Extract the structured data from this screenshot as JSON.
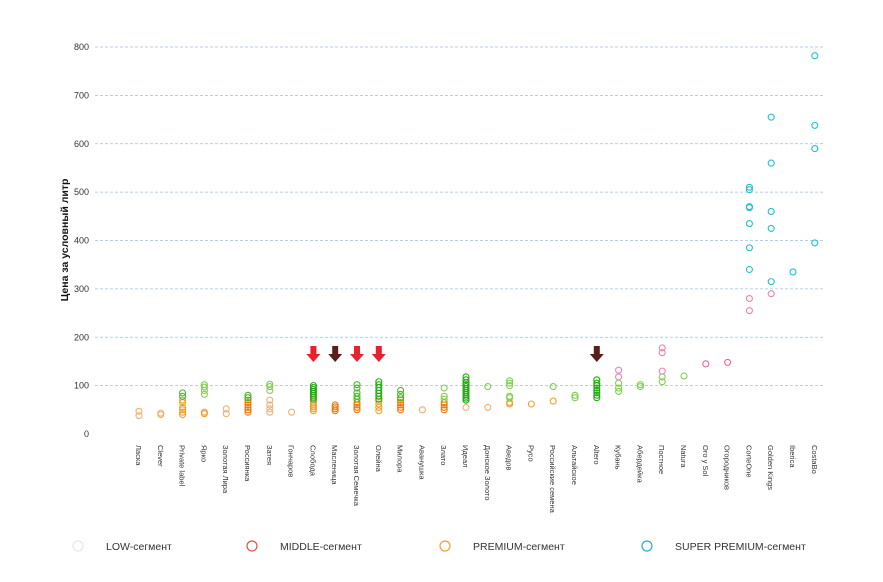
{
  "chart_data": {
    "type": "scatter",
    "ylabel": "Цена за условный литр",
    "xlabel": "",
    "ylim": [
      0,
      800
    ],
    "yticks": [
      0,
      100,
      200,
      300,
      400,
      500,
      600,
      700,
      800
    ],
    "grid": true,
    "legend_position": "bottom",
    "categories": [
      "Ласка",
      "Clever",
      "Private label",
      "Ярко",
      "Золотая Лира",
      "Россиянка",
      "Затея",
      "Гончаров",
      "Слобода",
      "Масленица",
      "Золотая Семечка",
      "Олейна",
      "Милора",
      "Аванушка",
      "Злато",
      "Идеал",
      "Донское Золото",
      "Аведов",
      "Русо",
      "Российские семена",
      "Альтайское",
      "Altero",
      "Кубань",
      "Абердейка",
      "Постное",
      "Natura",
      "Oro y Sol",
      "Огородников",
      "CorteOne",
      "Golden Kings",
      "Iberica",
      "CostaBo"
    ],
    "segments": [
      {
        "name": "LOW-сегмент",
        "color": "#e8e8e8"
      },
      {
        "name": "MIDDLE-сегмент",
        "color": "#d9534f"
      },
      {
        "name": "PREMIUM-сегмент",
        "color": "#f0a030"
      },
      {
        "name": "SUPER PREMIUM-сегмент",
        "color": "#2aa9d6"
      }
    ],
    "points": [
      {
        "category": "Ласка",
        "values": [
          38,
          47
        ],
        "color": "#f0b070"
      },
      {
        "category": "Clever",
        "values": [
          40,
          43
        ],
        "color": "#f0b070"
      },
      {
        "category": "Private label",
        "values": [
          40,
          45,
          50,
          55,
          65,
          70
        ],
        "color": "#f0a030"
      },
      {
        "category": "Private label",
        "values": [
          78,
          85
        ],
        "color": "#44bb22"
      },
      {
        "category": "Ярко",
        "values": [
          42,
          45
        ],
        "color": "#f0a030"
      },
      {
        "category": "Ярко",
        "values": [
          82,
          90,
          97,
          102
        ],
        "color": "#7fd04f"
      },
      {
        "category": "Золотая Лира",
        "values": [
          42,
          52
        ],
        "color": "#f0b070"
      },
      {
        "category": "Россиянка",
        "values": [
          45,
          50,
          55,
          60,
          65,
          70
        ],
        "color": "#f07a10"
      },
      {
        "category": "Россиянка",
        "values": [
          75,
          80
        ],
        "color": "#44bb22"
      },
      {
        "category": "Затея",
        "values": [
          45,
          52,
          60,
          70
        ],
        "color": "#f0b070"
      },
      {
        "category": "Затея",
        "values": [
          90,
          98,
          103
        ],
        "color": "#7fd04f"
      },
      {
        "category": "Гончаров",
        "values": [
          45
        ],
        "color": "#f0b070"
      },
      {
        "category": "Слобода",
        "values": [
          48,
          52,
          56,
          60,
          64,
          68
        ],
        "color": "#f0a030"
      },
      {
        "category": "Слобода",
        "values": [
          72,
          76,
          80,
          84,
          88,
          92,
          96,
          100
        ],
        "color": "#22aa11"
      },
      {
        "category": "Масленица",
        "values": [
          48,
          52,
          56,
          60
        ],
        "color": "#f07a10"
      },
      {
        "category": "Золотая Семечка",
        "values": [
          50,
          55,
          60,
          65
        ],
        "color": "#f07a10"
      },
      {
        "category": "Золотая Семечка",
        "values": [
          72,
          78,
          85,
          95,
          102
        ],
        "color": "#44bb22"
      },
      {
        "category": "Олейна",
        "values": [
          48,
          55,
          62,
          68
        ],
        "color": "#f0a030"
      },
      {
        "category": "Олейна",
        "values": [
          72,
          78,
          84,
          90,
          96,
          102,
          108
        ],
        "color": "#22aa11"
      },
      {
        "category": "Милора",
        "values": [
          50,
          55,
          60,
          65,
          70
        ],
        "color": "#f07a10"
      },
      {
        "category": "Милора",
        "values": [
          75,
          82,
          90
        ],
        "color": "#44bb22"
      },
      {
        "category": "Аванушка",
        "values": [
          50
        ],
        "color": "#f0b070"
      },
      {
        "category": "Злато",
        "values": [
          50,
          55,
          60,
          65
        ],
        "color": "#f07a10"
      },
      {
        "category": "Злато",
        "values": [
          72,
          78,
          95
        ],
        "color": "#7fd04f"
      },
      {
        "category": "Идеал",
        "values": [
          55
        ],
        "color": "#f0b070"
      },
      {
        "category": "Идеал",
        "values": [
          70,
          74,
          78,
          82,
          86,
          90,
          94,
          98,
          102,
          106,
          112,
          118
        ],
        "color": "#22aa11"
      },
      {
        "category": "Донское Золото",
        "values": [
          55
        ],
        "color": "#f0b070"
      },
      {
        "category": "Донское Золото",
        "values": [
          98
        ],
        "color": "#7fd04f"
      },
      {
        "category": "Аведов",
        "values": [
          62,
          65
        ],
        "color": "#f0a030"
      },
      {
        "category": "Аведов",
        "values": [
          75,
          78,
          100,
          105,
          110
        ],
        "color": "#7fd04f"
      },
      {
        "category": "Русо",
        "values": [
          62
        ],
        "color": "#f0a030"
      },
      {
        "category": "Российские семена",
        "values": [
          68
        ],
        "color": "#f0a030"
      },
      {
        "category": "Российские семена",
        "values": [
          98
        ],
        "color": "#7fd04f"
      },
      {
        "category": "Альтайское",
        "values": [
          75,
          80
        ],
        "color": "#7fd04f"
      },
      {
        "category": "Altero",
        "values": [
          75,
          80,
          85,
          90,
          95,
          100,
          105,
          112
        ],
        "color": "#22aa11"
      },
      {
        "category": "Кубань",
        "values": [
          88,
          95,
          105
        ],
        "color": "#7fd04f"
      },
      {
        "category": "Кубань",
        "values": [
          118,
          132
        ],
        "color": "#f080b0"
      },
      {
        "category": "Абердейка",
        "values": [
          98,
          102
        ],
        "color": "#7fd04f"
      },
      {
        "category": "Постное",
        "values": [
          108,
          118
        ],
        "color": "#7fd04f"
      },
      {
        "category": "Постное",
        "values": [
          130,
          168,
          178
        ],
        "color": "#f080b0"
      },
      {
        "category": "Natura",
        "values": [
          120
        ],
        "color": "#7fd04f"
      },
      {
        "category": "Oro y Sol",
        "values": [
          145
        ],
        "color": "#f060a0"
      },
      {
        "category": "Огородников",
        "values": [
          148
        ],
        "color": "#f060a0"
      },
      {
        "category": "CorteOne",
        "values": [
          255,
          280
        ],
        "color": "#f080b0"
      },
      {
        "category": "CorteOne",
        "values": [
          340,
          385,
          435,
          468,
          470,
          505,
          510
        ],
        "color": "#20c0d0"
      },
      {
        "category": "Golden Kings",
        "values": [
          290
        ],
        "color": "#f080b0"
      },
      {
        "category": "Golden Kings",
        "values": [
          315,
          425,
          460,
          560,
          655
        ],
        "color": "#20c0d0"
      },
      {
        "category": "Iberica",
        "values": [
          335
        ],
        "color": "#20c0d0"
      },
      {
        "category": "CostaBo",
        "values": [
          395,
          590,
          638,
          782
        ],
        "color": "#20c0d0"
      }
    ],
    "annotations": [
      {
        "category": "Слобода",
        "type": "arrow-down",
        "color": "#e8212b"
      },
      {
        "category": "Масленица",
        "type": "arrow-down",
        "color": "#5a1f1a"
      },
      {
        "category": "Золотая Семечка",
        "type": "arrow-down",
        "color": "#e8212b"
      },
      {
        "category": "Олейна",
        "type": "arrow-down",
        "color": "#e8212b"
      },
      {
        "category": "Altero",
        "type": "arrow-down",
        "color": "#5a1f1a"
      }
    ]
  }
}
